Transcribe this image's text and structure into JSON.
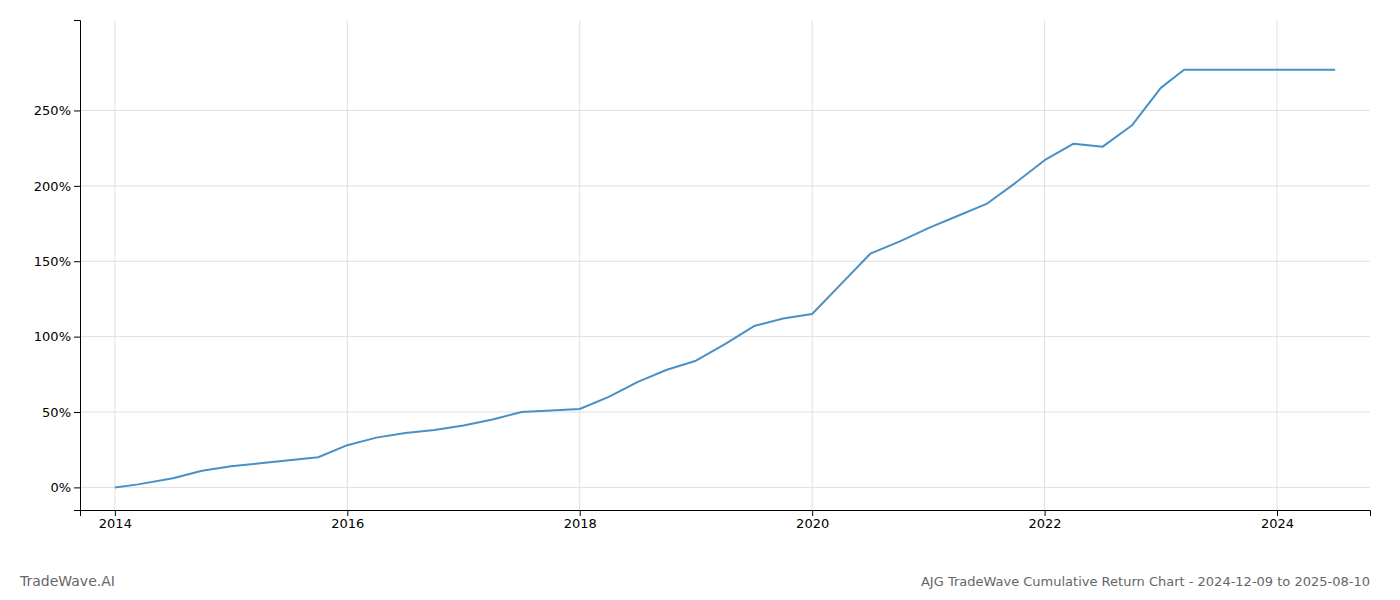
{
  "chart_data": {
    "type": "line",
    "title": "AJG TradeWave Cumulative Return Chart - 2024-12-09 to 2025-08-10",
    "annotations": [
      "TradeWave.AI"
    ],
    "color": "#4a90c4",
    "grid": true,
    "x": [
      2014.0,
      2014.2,
      2014.5,
      2014.75,
      2015.0,
      2015.25,
      2015.5,
      2015.75,
      2016.0,
      2016.25,
      2016.5,
      2016.75,
      2017.0,
      2017.25,
      2017.5,
      2017.75,
      2018.0,
      2018.25,
      2018.5,
      2018.75,
      2019.0,
      2019.25,
      2019.5,
      2019.75,
      2020.0,
      2020.25,
      2020.5,
      2020.75,
      2021.0,
      2021.25,
      2021.5,
      2021.75,
      2022.0,
      2022.25,
      2022.5,
      2022.75,
      2023.0,
      2023.2,
      2023.5,
      2024.0,
      2024.5
    ],
    "values": [
      0.0,
      2.0,
      6.0,
      11.0,
      14.0,
      16.0,
      18.0,
      20.0,
      28.0,
      33.0,
      36.0,
      38.0,
      41.0,
      45.0,
      50.0,
      51.0,
      52.0,
      60.0,
      70.0,
      78.0,
      84.0,
      95.0,
      107.0,
      112.0,
      115.0,
      135.0,
      155.0,
      163.0,
      172.0,
      180.0,
      188.0,
      202.0,
      217.0,
      228.0,
      226.0,
      240.0,
      265.0,
      277.0,
      277.0,
      277.0,
      277.0
    ],
    "xlim": [
      2013.7,
      2024.8
    ],
    "ylim": [
      -15,
      310
    ],
    "xticks": [
      2014,
      2016,
      2018,
      2020,
      2022,
      2024
    ],
    "yticks": [
      {
        "value": 0,
        "label": "0%"
      },
      {
        "value": 50,
        "label": "50%"
      },
      {
        "value": 100,
        "label": "100%"
      },
      {
        "value": 150,
        "label": "150%"
      },
      {
        "value": 200,
        "label": "200%"
      },
      {
        "value": 250,
        "label": "250%"
      }
    ]
  }
}
